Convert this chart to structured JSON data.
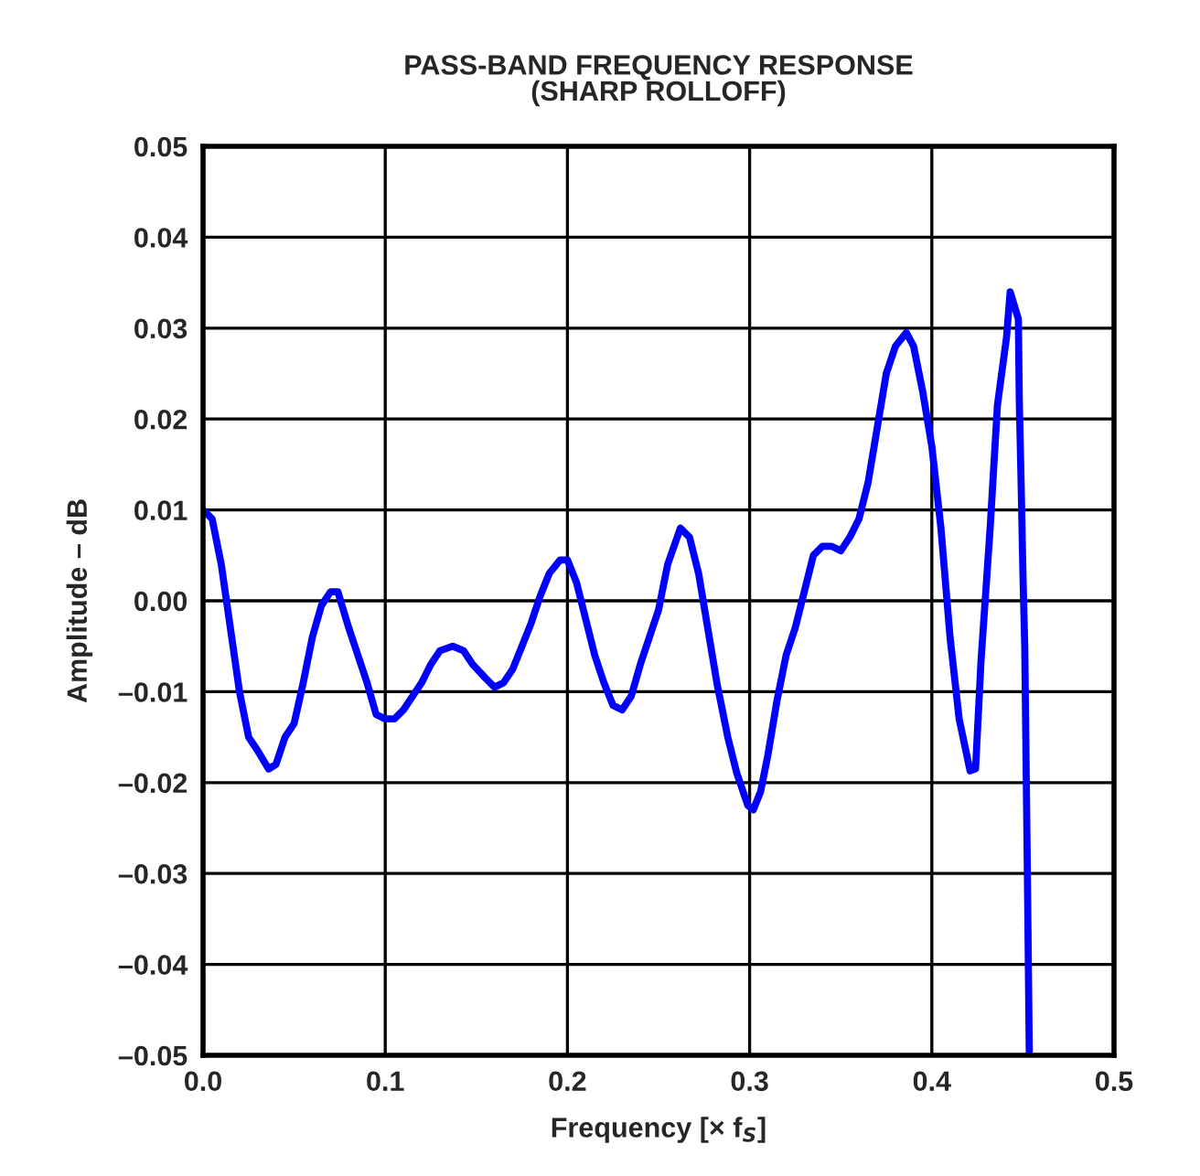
{
  "chart_data": {
    "type": "line",
    "title": "PASS-BAND FREQUENCY RESPONSE\n(SHARP ROLLOFF)",
    "xlabel": "Frequency [× f$_{S}$]",
    "ylabel": "Amplitude – dB",
    "xlim": [
      0,
      0.5
    ],
    "ylim": [
      -0.05,
      0.05
    ],
    "xticks": [
      {
        "value": 0,
        "label": "0.0"
      },
      0.1,
      0.2,
      0.3,
      0.4,
      0.5
    ],
    "yticks": [
      {
        "value": -0.05,
        "label": "–0.05"
      },
      {
        "value": -0.04,
        "label": "–0.04"
      },
      {
        "value": -0.03,
        "label": "–0.03"
      },
      {
        "value": -0.02,
        "label": "–0.02"
      },
      {
        "value": -0.01,
        "label": "–0.01"
      },
      {
        "value": 0,
        "label": "0.00"
      },
      {
        "value": 0.01,
        "label": "0.01"
      },
      {
        "value": 0.02,
        "label": "0.02"
      },
      {
        "value": 0.03,
        "label": "0.03"
      },
      {
        "value": 0.04,
        "label": "0.04"
      },
      {
        "value": 0.05,
        "label": "0.05"
      }
    ],
    "grid": true,
    "line_style": "solid",
    "series": [
      {
        "color": "#0000ff",
        "x": [
          0.0,
          0.005,
          0.01,
          0.015,
          0.02,
          0.025,
          0.03,
          0.036,
          0.04,
          0.045,
          0.05,
          0.055,
          0.06,
          0.065,
          0.07,
          0.074,
          0.08,
          0.085,
          0.09,
          0.095,
          0.1,
          0.105,
          0.11,
          0.115,
          0.12,
          0.125,
          0.13,
          0.137,
          0.143,
          0.148,
          0.155,
          0.16,
          0.165,
          0.17,
          0.175,
          0.18,
          0.185,
          0.19,
          0.196,
          0.2,
          0.205,
          0.21,
          0.215,
          0.22,
          0.225,
          0.23,
          0.235,
          0.24,
          0.245,
          0.25,
          0.255,
          0.262,
          0.267,
          0.272,
          0.277,
          0.282,
          0.288,
          0.293,
          0.299,
          0.302,
          0.306,
          0.31,
          0.315,
          0.32,
          0.325,
          0.33,
          0.335,
          0.34,
          0.345,
          0.35,
          0.355,
          0.36,
          0.365,
          0.37,
          0.375,
          0.38,
          0.386,
          0.39,
          0.395,
          0.4,
          0.405,
          0.41,
          0.415,
          0.421,
          0.424,
          0.427,
          0.432,
          0.436,
          0.441,
          0.443,
          0.446,
          0.4475,
          0.448,
          0.449,
          0.45,
          0.451,
          0.4525,
          0.4535
        ],
        "values": [
          0.01,
          0.009,
          0.004,
          -0.003,
          -0.01,
          -0.015,
          -0.0165,
          -0.0185,
          -0.018,
          -0.015,
          -0.0135,
          -0.009,
          -0.004,
          -0.0005,
          0.001,
          0.001,
          -0.003,
          -0.006,
          -0.009,
          -0.0125,
          -0.013,
          -0.013,
          -0.012,
          -0.0105,
          -0.009,
          -0.007,
          -0.0055,
          -0.005,
          -0.0055,
          -0.007,
          -0.0085,
          -0.0095,
          -0.009,
          -0.0075,
          -0.005,
          -0.0025,
          0.0005,
          0.003,
          0.0045,
          0.0045,
          0.002,
          -0.002,
          -0.006,
          -0.009,
          -0.0115,
          -0.012,
          -0.0105,
          -0.007,
          -0.004,
          -0.001,
          0.004,
          0.008,
          0.007,
          0.003,
          -0.003,
          -0.009,
          -0.015,
          -0.019,
          -0.0225,
          -0.023,
          -0.021,
          -0.017,
          -0.011,
          -0.006,
          -0.003,
          0.001,
          0.005,
          0.006,
          0.006,
          0.0055,
          0.007,
          0.009,
          0.013,
          0.019,
          0.025,
          0.028,
          0.0295,
          0.028,
          0.023,
          0.017,
          0.008,
          -0.004,
          -0.013,
          -0.0187,
          -0.0185,
          -0.0066,
          0.008,
          0.0215,
          0.029,
          0.034,
          0.032,
          0.031,
          0.022,
          0.013,
          0.003,
          -0.005,
          -0.031,
          -0.05
        ]
      }
    ]
  }
}
